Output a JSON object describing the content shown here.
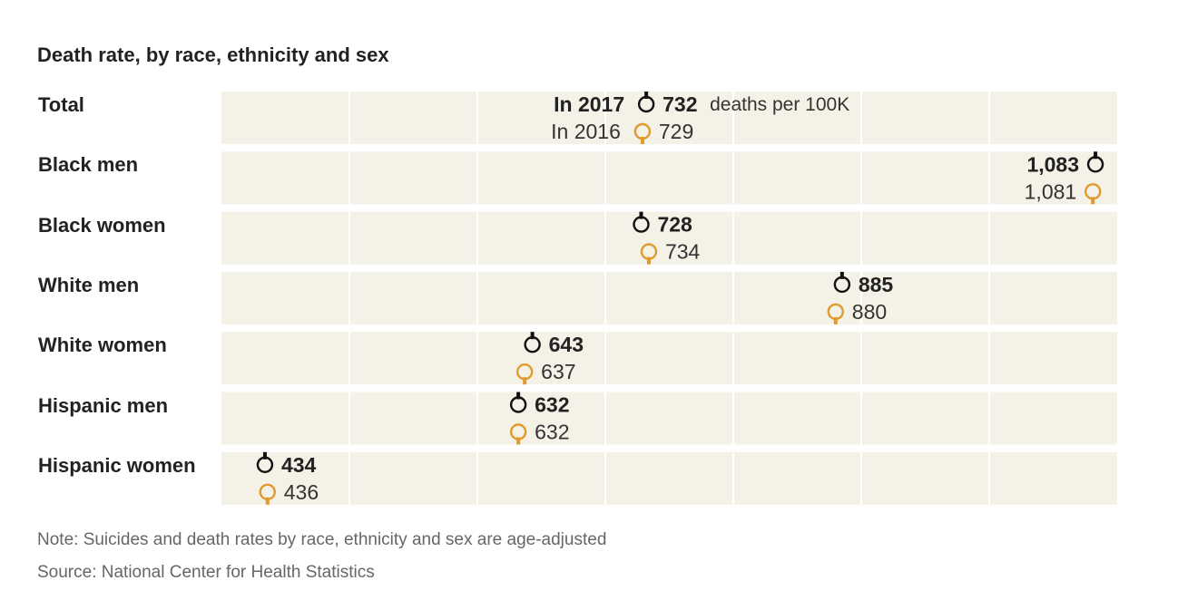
{
  "title": "Death rate, by race, ethnicity and sex",
  "legend": {
    "label_2017": "In 2017",
    "label_2016": "In 2016",
    "unit_label": "deaths per 100K"
  },
  "colors": {
    "band": "#f4f1e6",
    "year_2017": "#111111",
    "year_2016": "#e09a2d",
    "text": "#222222",
    "note": "#666666"
  },
  "footnotes": {
    "note": "Note: Suicides and death rates by race, ethnicity and sex are age-adjusted",
    "source": "Source: National Center for Health Statistics"
  },
  "chart_data": {
    "type": "dot",
    "orientation": "horizontal",
    "title": "Death rate, by race, ethnicity and sex",
    "unit": "deaths per 100K",
    "xlim": [
      400,
      1100
    ],
    "x_gridlines": [
      500,
      600,
      700,
      800,
      900,
      1000
    ],
    "grid": true,
    "categories": [
      "Total",
      "Black men",
      "Black women",
      "White men",
      "White women",
      "Hispanic men",
      "Hispanic women"
    ],
    "series": [
      {
        "name": "In 2017",
        "values": [
          732,
          1083,
          728,
          885,
          643,
          632,
          434
        ],
        "labels": [
          "732",
          "1,083",
          "728",
          "885",
          "643",
          "632",
          "434"
        ]
      },
      {
        "name": "In 2016",
        "values": [
          729,
          1081,
          734,
          880,
          637,
          632,
          436
        ],
        "labels": [
          "729",
          "1,081",
          "734",
          "880",
          "637",
          "632",
          "436"
        ]
      }
    ]
  }
}
